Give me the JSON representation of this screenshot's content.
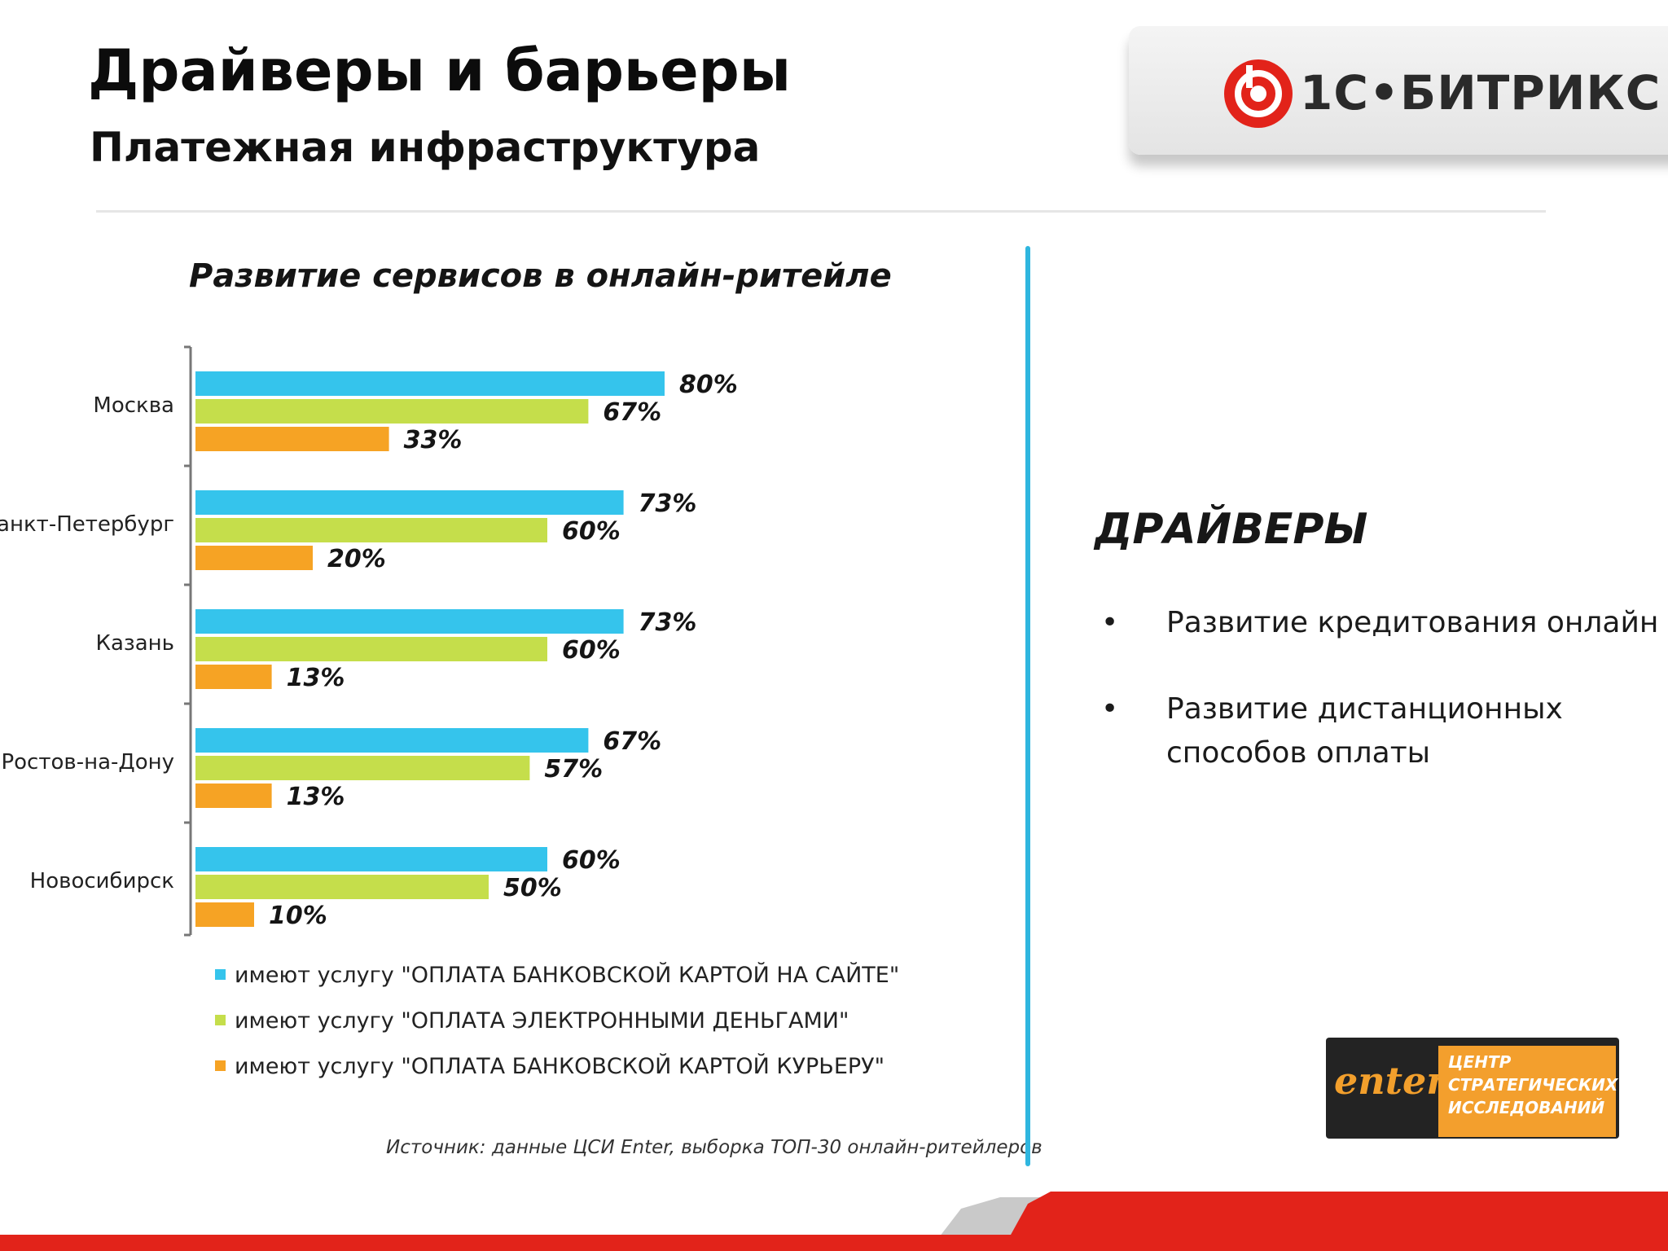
{
  "slide": {
    "title": "Драйверы и барьеры",
    "subtitle": "Платежная инфраструктура"
  },
  "brand": {
    "logo_text": "1С•БИТРИКС",
    "logo_icon": "bitrix-ring-icon",
    "accent_red": "#e2231a"
  },
  "chart_title": "Развитие сервисов в онлайн-ритейле",
  "chart_data": {
    "type": "bar",
    "orientation": "horizontal",
    "categories": [
      "Москва",
      "Санкт-Петербург",
      "Казань",
      "Ростов-на-Дону",
      "Новосибирск"
    ],
    "series": [
      {
        "name": "имеют услугу \"ОПЛАТА БАНКОВСКОЙ КАРТОЙ НА САЙТЕ\"",
        "color": "#35c4ec",
        "values": [
          80,
          73,
          73,
          67,
          60
        ],
        "labels": [
          "80%",
          "73%",
          "73%",
          "67%",
          "60%"
        ]
      },
      {
        "name": "имеют услугу \"ОПЛАТА ЭЛЕКТРОННЫМИ ДЕНЬГАМИ\"",
        "color": "#c5de4b",
        "values": [
          67,
          60,
          60,
          57,
          50
        ],
        "labels": [
          "67%",
          "60%",
          "60%",
          "57%",
          "50%"
        ]
      },
      {
        "name": "имеют услугу \"ОПЛАТА БАНКОВСКОЙ КАРТОЙ КУРЬЕРУ\"",
        "color": "#f6a324",
        "values": [
          33,
          20,
          13,
          13,
          10
        ],
        "labels": [
          "33%",
          "20%",
          "13%",
          "13%",
          "10%"
        ]
      }
    ],
    "xlim": [
      0,
      100
    ],
    "grid": false,
    "legend_position": "bottom"
  },
  "source": "Источник: данные ЦСИ Enter, выборка ТОП-30 онлайн-ритейлеров",
  "drivers": {
    "heading": "ДРАЙВЕРЫ",
    "bullet": "•",
    "items": [
      "Развитие кредитования онлайн",
      "Развитие дистанционных способов оплаты"
    ]
  },
  "partner": {
    "word": "enter",
    "lines": [
      "ЦЕНТР",
      "СТРАТЕГИЧЕСКИХ",
      "ИССЛЕДОВАНИЙ"
    ]
  },
  "colors": {
    "divider": "#2fb6df",
    "footer_red": "#e2231a",
    "footer_gray": "#c9c9c9"
  }
}
